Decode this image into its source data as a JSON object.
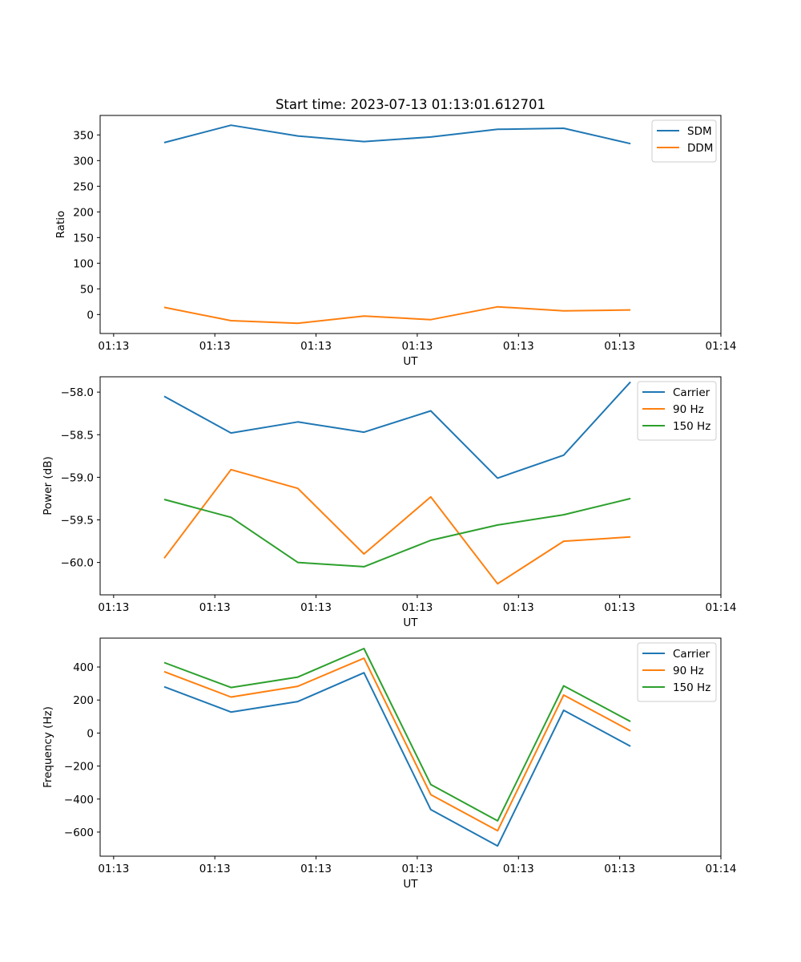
{
  "figure_title": "Start time: 2023-07-13 01:13:01.612701",
  "colors": {
    "blue": "#1f77b4",
    "orange": "#ff7f0e",
    "green": "#2ca02c"
  },
  "chart_data": [
    {
      "type": "line",
      "title": "Start time: 2023-07-13 01:13:01.612701",
      "xlabel": "UT",
      "ylabel": "Ratio",
      "x_tick_labels": [
        "01:13",
        "01:13",
        "01:13",
        "01:13",
        "01:13",
        "01:13",
        "01:14"
      ],
      "x_tick_values": [
        0,
        1.5,
        3,
        4.5,
        6,
        7.5,
        9
      ],
      "xlim": [
        -0.2,
        9.0
      ],
      "x": [
        0.75,
        1.74,
        2.73,
        3.71,
        4.7,
        5.69,
        6.67,
        7.66
      ],
      "ylim": [
        -37,
        388
      ],
      "y_ticks": [
        0,
        50,
        100,
        150,
        200,
        250,
        300,
        350
      ],
      "y_tick_labels": [
        "0",
        "50",
        "100",
        "150",
        "200",
        "250",
        "300",
        "350"
      ],
      "legend_position": "top-right",
      "series": [
        {
          "name": "SDM",
          "color": "#1f77b4",
          "values": [
            335,
            369,
            348,
            337,
            346,
            361,
            363,
            333
          ]
        },
        {
          "name": "DDM",
          "color": "#ff7f0e",
          "values": [
            14,
            -12,
            -17,
            -3,
            -10,
            15,
            7,
            9
          ]
        }
      ]
    },
    {
      "type": "line",
      "title": "",
      "xlabel": "UT",
      "ylabel": "Power (dB)",
      "x_tick_labels": [
        "01:13",
        "01:13",
        "01:13",
        "01:13",
        "01:13",
        "01:13",
        "01:14"
      ],
      "x_tick_values": [
        0,
        1.5,
        3,
        4.5,
        6,
        7.5,
        9
      ],
      "xlim": [
        -0.2,
        9.0
      ],
      "x": [
        0.75,
        1.74,
        2.73,
        3.71,
        4.7,
        5.69,
        6.67,
        7.66
      ],
      "ylim": [
        -60.38,
        -57.82
      ],
      "y_ticks": [
        -60.0,
        -59.5,
        -59.0,
        -58.5,
        -58.0
      ],
      "y_tick_labels": [
        "−60.0",
        "−59.5",
        "−59.0",
        "−58.5",
        "−58.0"
      ],
      "legend_position": "top-right",
      "series": [
        {
          "name": "Carrier",
          "color": "#1f77b4",
          "values": [
            -58.05,
            -58.48,
            -58.35,
            -58.47,
            -58.22,
            -59.01,
            -58.74,
            -57.88
          ]
        },
        {
          "name": "90 Hz",
          "color": "#ff7f0e",
          "values": [
            -59.95,
            -58.91,
            -59.13,
            -59.9,
            -59.23,
            -60.25,
            -59.75,
            -59.7
          ]
        },
        {
          "name": "150 Hz",
          "color": "#2ca02c",
          "values": [
            -59.26,
            -59.47,
            -60.0,
            -60.05,
            -59.74,
            -59.56,
            -59.44,
            -59.25
          ]
        }
      ]
    },
    {
      "type": "line",
      "title": "",
      "xlabel": "UT",
      "ylabel": "Frequency (Hz)",
      "x_tick_labels": [
        "01:13",
        "01:13",
        "01:13",
        "01:13",
        "01:13",
        "01:13",
        "01:14"
      ],
      "x_tick_values": [
        0,
        1.5,
        3,
        4.5,
        6,
        7.5,
        9
      ],
      "xlim": [
        -0.2,
        9.0
      ],
      "x": [
        0.75,
        1.74,
        2.73,
        3.71,
        4.7,
        5.69,
        6.67,
        7.66
      ],
      "ylim": [
        -746,
        575
      ],
      "y_ticks": [
        -600,
        -400,
        -200,
        0,
        200,
        400
      ],
      "y_tick_labels": [
        "−600",
        "−400",
        "−200",
        "0",
        "200",
        "400"
      ],
      "legend_position": "top-right",
      "series": [
        {
          "name": "Carrier",
          "color": "#1f77b4",
          "values": [
            280,
            127,
            191,
            365,
            -464,
            -684,
            138,
            -80
          ]
        },
        {
          "name": "90 Hz",
          "color": "#ff7f0e",
          "values": [
            372,
            218,
            283,
            453,
            -373,
            -592,
            230,
            13
          ]
        },
        {
          "name": "150 Hz",
          "color": "#2ca02c",
          "values": [
            427,
            276,
            339,
            512,
            -312,
            -532,
            286,
            70
          ]
        }
      ]
    }
  ]
}
